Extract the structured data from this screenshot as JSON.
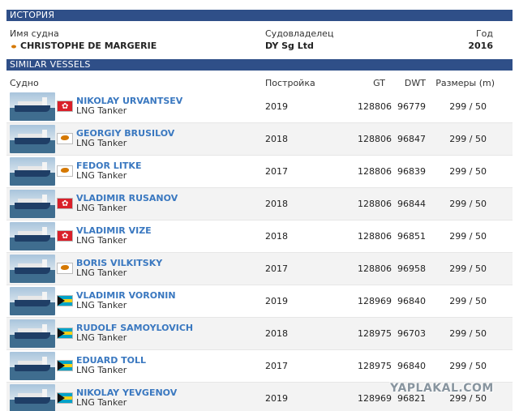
{
  "history": {
    "header": "ИСТОРИЯ",
    "col_name": "Имя судна",
    "col_owner": "Судовладелец",
    "col_year": "Год",
    "ship_name": "CHRISTOPHE DE MARGERIE",
    "owner": "DY Sg Ltd",
    "year": "2016",
    "flag_icon": "cyprus-flag-icon"
  },
  "similar": {
    "header": "SIMILAR VESSELS",
    "columns": {
      "vessel": "Судно",
      "built": "Постройка",
      "gt": "GT",
      "dwt": "DWT",
      "size": "Размеры (m)"
    },
    "vessels": [
      {
        "name": "NIKOLAY URVANTSEV",
        "type": "LNG Tanker",
        "year": "2019",
        "gt": "128806",
        "dwt": "96779",
        "size": "299 / 50",
        "flag": "hong-kong"
      },
      {
        "name": "GEORGIY BRUSILOV",
        "type": "LNG Tanker",
        "year": "2018",
        "gt": "128806",
        "dwt": "96847",
        "size": "299 / 50",
        "flag": "cyprus"
      },
      {
        "name": "FEDOR LITKE",
        "type": "LNG Tanker",
        "year": "2017",
        "gt": "128806",
        "dwt": "96839",
        "size": "299 / 50",
        "flag": "cyprus"
      },
      {
        "name": "VLADIMIR RUSANOV",
        "type": "LNG Tanker",
        "year": "2018",
        "gt": "128806",
        "dwt": "96844",
        "size": "299 / 50",
        "flag": "hong-kong"
      },
      {
        "name": "VLADIMIR VIZE",
        "type": "LNG Tanker",
        "year": "2018",
        "gt": "128806",
        "dwt": "96851",
        "size": "299 / 50",
        "flag": "hong-kong"
      },
      {
        "name": "BORIS VILKITSKY",
        "type": "LNG Tanker",
        "year": "2017",
        "gt": "128806",
        "dwt": "96958",
        "size": "299 / 50",
        "flag": "cyprus"
      },
      {
        "name": "VLADIMIR VORONIN",
        "type": "LNG Tanker",
        "year": "2019",
        "gt": "128969",
        "dwt": "96840",
        "size": "299 / 50",
        "flag": "bahamas"
      },
      {
        "name": "RUDOLF SAMOYLOVICH",
        "type": "LNG Tanker",
        "year": "2018",
        "gt": "128975",
        "dwt": "96703",
        "size": "299 / 50",
        "flag": "bahamas"
      },
      {
        "name": "EDUARD TOLL",
        "type": "LNG Tanker",
        "year": "2017",
        "gt": "128975",
        "dwt": "96840",
        "size": "299 / 50",
        "flag": "bahamas"
      },
      {
        "name": "NIKOLAY YEVGENOV",
        "type": "LNG Tanker",
        "year": "2019",
        "gt": "128969",
        "dwt": "96821",
        "size": "299 / 50",
        "flag": "bahamas"
      }
    ]
  },
  "watermark": "YAPLAKAL.COM",
  "colors": {
    "header_bg": "#2f4f88",
    "link": "#3a78c0"
  }
}
